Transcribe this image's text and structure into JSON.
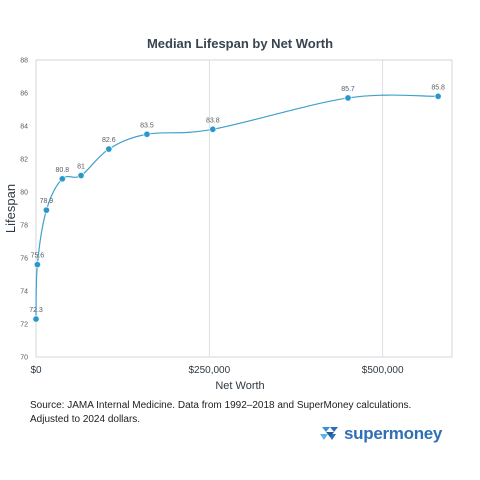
{
  "chart_data": {
    "type": "line",
    "title": "Median Lifespan by Net Worth",
    "xlabel": "Net Worth",
    "ylabel": "Lifespan",
    "x_tick_labels": [
      "$0",
      "$250,000",
      "$500,000"
    ],
    "x_ticks": [
      0,
      250000,
      500000
    ],
    "xlim": [
      0,
      600000
    ],
    "y_ticks": [
      70,
      72,
      74,
      76,
      78,
      80,
      82,
      84,
      86,
      88
    ],
    "ylim": [
      70,
      88
    ],
    "grid": "vertical",
    "series": [
      {
        "color": "#2a97c9",
        "points": [
          {
            "x": 0,
            "y": 72.3,
            "label": "72.3"
          },
          {
            "x": 2000,
            "y": 75.6,
            "label": "75.6"
          },
          {
            "x": 15000,
            "y": 78.9,
            "label": "78.9"
          },
          {
            "x": 38000,
            "y": 80.8,
            "label": "80.8"
          },
          {
            "x": 65000,
            "y": 81,
            "label": "81"
          },
          {
            "x": 105000,
            "y": 82.6,
            "label": "82.6"
          },
          {
            "x": 160000,
            "y": 83.5,
            "label": "83.5"
          },
          {
            "x": 255000,
            "y": 83.8,
            "label": "83.8"
          },
          {
            "x": 450000,
            "y": 85.7,
            "label": "85.7"
          },
          {
            "x": 580000,
            "y": 85.8,
            "label": "85.8"
          }
        ]
      }
    ]
  },
  "footer": {
    "source_note": "Source: JAMA Internal Medicine. Data from 1992–2018 and SuperMoney calculations. Adjusted to 2024 dollars.",
    "brand_name": "supermoney",
    "brand_color": "#2f6fb4"
  }
}
